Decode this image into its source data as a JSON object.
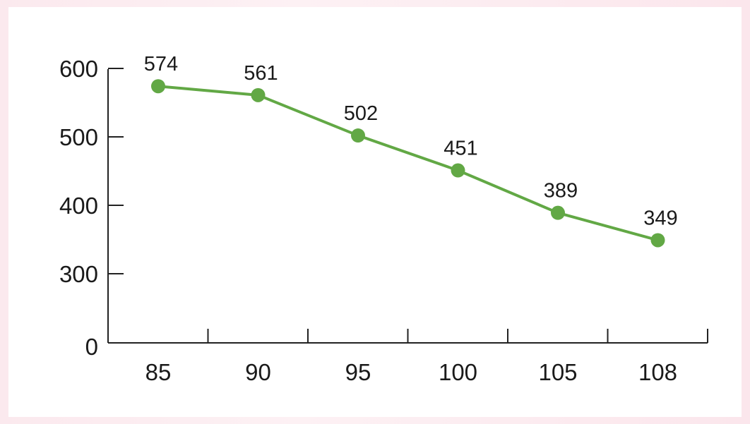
{
  "chart_data": {
    "type": "line",
    "title": "",
    "xlabel": "",
    "ylabel": "",
    "categories": [
      "85",
      "90",
      "95",
      "100",
      "105",
      "108"
    ],
    "series": [
      {
        "values": [
          574,
          561,
          502,
          451,
          389,
          349
        ]
      }
    ],
    "data_labels": [
      "574",
      "561",
      "502",
      "451",
      "389",
      "349"
    ],
    "y_ticks": [
      "0",
      "300",
      "400",
      "500",
      "600"
    ],
    "ylim": [
      0,
      600
    ],
    "y_axis_break": "between 0 and 300",
    "grid": false,
    "legend": "none",
    "colors": {
      "series": "#62a845",
      "axis": "#222222",
      "background": "#fbe9ee"
    }
  }
}
